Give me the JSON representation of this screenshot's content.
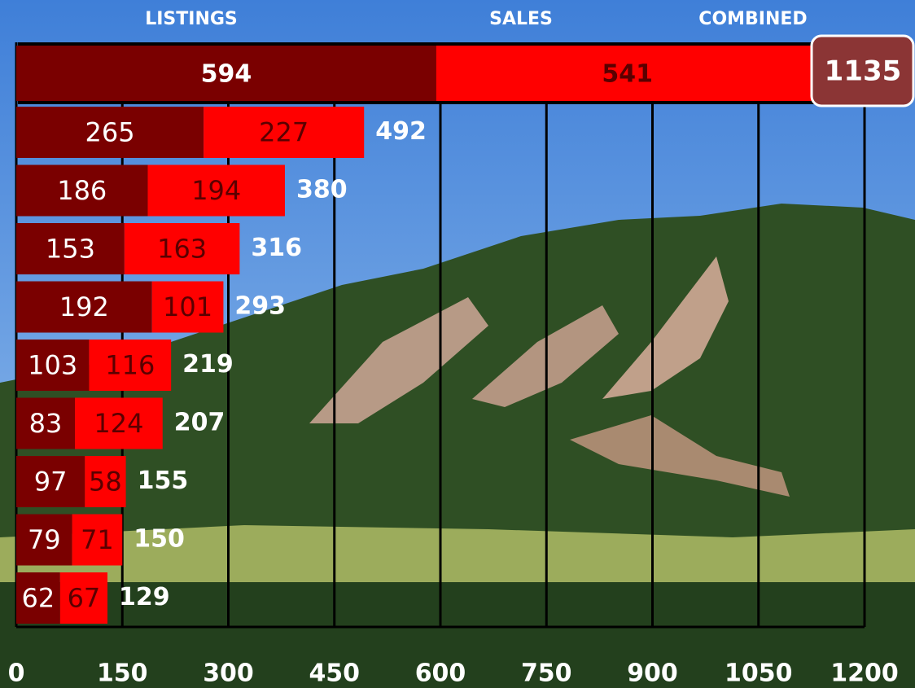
{
  "chart_data": {
    "type": "bar",
    "orientation": "horizontal",
    "stacked": true,
    "series": [
      {
        "name": "LISTINGS",
        "color": "#7a0000",
        "values": [
          594,
          265,
          186,
          153,
          192,
          103,
          83,
          97,
          79,
          62
        ]
      },
      {
        "name": "SALES",
        "color": "#ff0000",
        "values": [
          541,
          227,
          194,
          163,
          101,
          116,
          124,
          58,
          71,
          67
        ]
      }
    ],
    "combined": {
      "name": "COMBINED",
      "values": [
        1135,
        492,
        380,
        316,
        293,
        219,
        207,
        155,
        150,
        129
      ]
    },
    "xlim": [
      0,
      1200
    ],
    "xticks": [
      0,
      150,
      300,
      450,
      600,
      750,
      900,
      1050,
      1200
    ],
    "grid": true
  }
}
